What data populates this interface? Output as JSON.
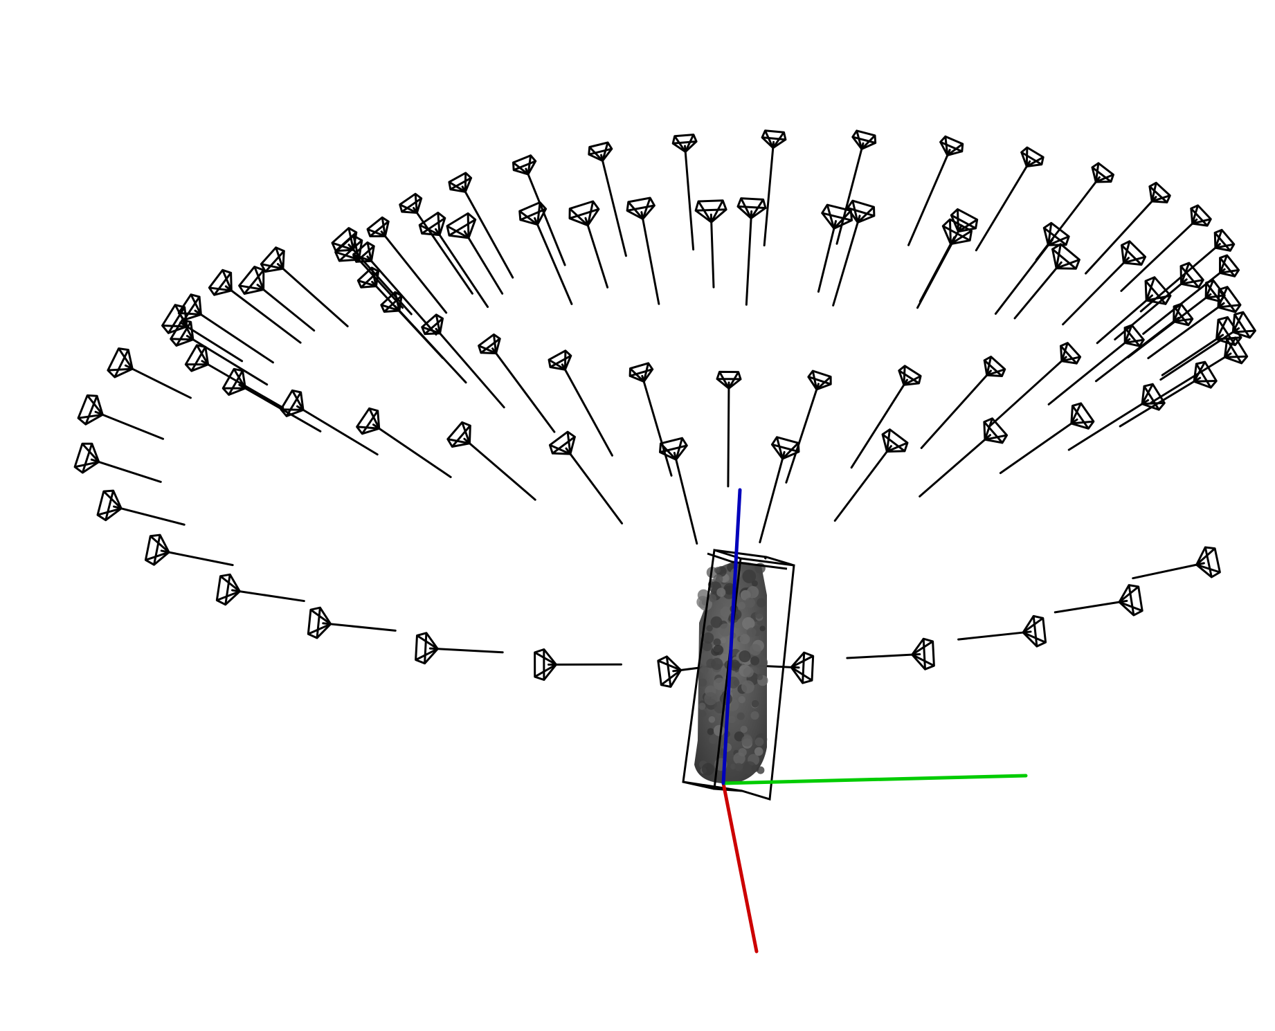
{
  "scene": {
    "background": "#ffffff",
    "camera_color": "#000000",
    "axis_colors": {
      "x": "#cc0000",
      "y": "#00cc00",
      "z": "#0000bb"
    },
    "object": {
      "type": "point-cloud",
      "shape": "cylinder",
      "color": "#4a4a4a",
      "bounding_box": true
    },
    "camera_rings": [
      {
        "name": "upper",
        "count": 30
      },
      {
        "name": "middle",
        "count": 30
      },
      {
        "name": "lower",
        "count": 30
      }
    ],
    "camera_glyph": "frustum-pyramid"
  }
}
